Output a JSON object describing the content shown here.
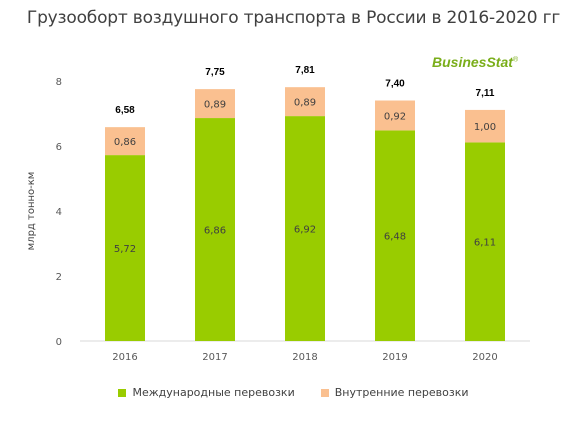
{
  "title": "Грузооборт воздушного транспорта в России в  2016-2020 гг",
  "logo": {
    "text": "BusinesStat",
    "mark": "®"
  },
  "colors": {
    "international": "#99cc00",
    "domestic": "#fac090",
    "axis_text": "#595959",
    "grid": "#d9d9d9"
  },
  "chart_data": {
    "type": "bar",
    "stacked": true,
    "categories": [
      "2016",
      "2017",
      "2018",
      "2019",
      "2020"
    ],
    "series": [
      {
        "name": "Международные перевозки",
        "values": [
          5.72,
          6.86,
          6.92,
          6.48,
          6.11
        ],
        "labels": [
          "5,72",
          "6,86",
          "6,92",
          "6,48",
          "6,11"
        ]
      },
      {
        "name": "Внутренние перевозки",
        "values": [
          0.86,
          0.89,
          0.89,
          0.92,
          1.0
        ],
        "labels": [
          "0,86",
          "0,89",
          "0,89",
          "0,92",
          "1,00"
        ]
      }
    ],
    "totals": [
      "6,58",
      "7,75",
      "7,81",
      "7,40",
      "7,11"
    ],
    "ylabel": "млрд тонно-км",
    "ylim": [
      0,
      8
    ],
    "yticks": [
      "0",
      "2",
      "4",
      "6",
      "8"
    ],
    "grid": false,
    "legend": "bottom"
  }
}
